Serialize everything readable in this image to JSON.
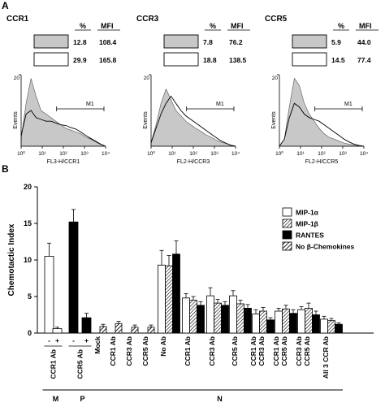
{
  "panelA": {
    "label": "A",
    "headers": {
      "percent": "%",
      "mfi": "MFI"
    },
    "gate": "M1",
    "ylabel": "Events",
    "xticks": [
      "10⁰",
      "10¹",
      "10²",
      "10³",
      "10⁴"
    ],
    "panels": [
      {
        "title": "CCR1",
        "xlabel": "FL3-H/CCR1",
        "ymax": "20",
        "rows": [
          {
            "pct": "12.8",
            "mfi": "108.4",
            "filled": true
          },
          {
            "pct": "29.9",
            "mfi": "165.8",
            "filled": false
          }
        ]
      },
      {
        "title": "CCR3",
        "xlabel": "FL2-H/CCR3",
        "ymax": "20",
        "rows": [
          {
            "pct": "7.8",
            "mfi": "76.2",
            "filled": true
          },
          {
            "pct": "18.8",
            "mfi": "138.5",
            "filled": false
          }
        ]
      },
      {
        "title": "CCR5",
        "xlabel": "FL2-H/CCR5",
        "ymax": "20",
        "rows": [
          {
            "pct": "5.9",
            "mfi": "44.0",
            "filled": true
          },
          {
            "pct": "14.5",
            "mfi": "77.4",
            "filled": false
          }
        ]
      }
    ]
  },
  "panelB": {
    "label": "B"
  },
  "chart_data": {
    "type": "bar",
    "ylabel": "Chemotactic Index",
    "ylim": [
      0,
      20
    ],
    "yticks": [
      "0",
      "5",
      "10",
      "15",
      "20"
    ],
    "legend_position": "top-right",
    "legend": [
      {
        "name": "MIP-1α",
        "pattern": "white"
      },
      {
        "name": "MIP-1β",
        "pattern": "hatch-dense"
      },
      {
        "name": "RANTES",
        "pattern": "black"
      },
      {
        "name": "No β-Chemokines",
        "pattern": "hatch-wide"
      }
    ],
    "groups": [
      {
        "name": "M",
        "cells": [
          0,
          1
        ]
      },
      {
        "name": "P",
        "cells": [
          2,
          3
        ]
      },
      {
        "name": "N",
        "cells": [
          4,
          15
        ]
      }
    ],
    "brackets": [
      {
        "label": "CCR1 Ab",
        "cells": [
          0,
          1
        ]
      },
      {
        "label": "CCR5 Ab",
        "cells": [
          2,
          3
        ]
      }
    ],
    "cells": [
      {
        "label": "-",
        "bars": [
          {
            "pattern": "white",
            "value": 10.5,
            "err": 1.8
          }
        ]
      },
      {
        "label": "+",
        "bars": [
          {
            "pattern": "white",
            "value": 0.6,
            "err": 0.2
          }
        ]
      },
      {
        "label": "-",
        "bars": [
          {
            "pattern": "black",
            "value": 15.2,
            "err": 1.7
          }
        ]
      },
      {
        "label": "+",
        "bars": [
          {
            "pattern": "black",
            "value": 2.1,
            "err": 0.6
          }
        ]
      },
      {
        "label": "Mock",
        "bars": [
          {
            "pattern": "hatch-wide",
            "value": 0.9,
            "err": 0.3
          }
        ]
      },
      {
        "label": "CCR1 Ab",
        "bars": [
          {
            "pattern": "hatch-wide",
            "value": 1.3,
            "err": 0.3
          }
        ]
      },
      {
        "label": "CCR3 Ab",
        "bars": [
          {
            "pattern": "hatch-wide",
            "value": 0.8,
            "err": 0.3
          }
        ]
      },
      {
        "label": "CCR5 Ab",
        "bars": [
          {
            "pattern": "hatch-wide",
            "value": 0.8,
            "err": 0.3
          }
        ]
      },
      {
        "label": "No Ab",
        "bars": [
          {
            "pattern": "white",
            "value": 9.3,
            "err": 2.0
          },
          {
            "pattern": "hatch-dense",
            "value": 9.2,
            "err": 1.4
          },
          {
            "pattern": "black",
            "value": 10.8,
            "err": 1.8
          }
        ]
      },
      {
        "label": "CCR1 Ab",
        "bars": [
          {
            "pattern": "white",
            "value": 4.8,
            "err": 0.6
          },
          {
            "pattern": "hatch-dense",
            "value": 4.5,
            "err": 0.5
          },
          {
            "pattern": "black",
            "value": 3.8,
            "err": 0.5
          }
        ]
      },
      {
        "label": "CCR3 Ab",
        "bars": [
          {
            "pattern": "white",
            "value": 5.1,
            "err": 1.1
          },
          {
            "pattern": "hatch-dense",
            "value": 4.1,
            "err": 0.5
          },
          {
            "pattern": "black",
            "value": 3.8,
            "err": 0.5
          }
        ]
      },
      {
        "label": "CCR5 Ab",
        "bars": [
          {
            "pattern": "white",
            "value": 5.1,
            "err": 0.7
          },
          {
            "pattern": "hatch-dense",
            "value": 4.0,
            "err": 0.5
          },
          {
            "pattern": "black",
            "value": 3.4,
            "err": 0.5
          }
        ]
      },
      {
        "label": "CCR1 Ab\nCCR3 Ab",
        "bars": [
          {
            "pattern": "white",
            "value": 2.6,
            "err": 0.6
          },
          {
            "pattern": "hatch-dense",
            "value": 3.0,
            "err": 0.5
          },
          {
            "pattern": "black",
            "value": 1.8,
            "err": 0.3
          }
        ]
      },
      {
        "label": "CCR1 Ab\nCCR5 Ab",
        "bars": [
          {
            "pattern": "white",
            "value": 3.0,
            "err": 0.4
          },
          {
            "pattern": "hatch-dense",
            "value": 3.3,
            "err": 0.5
          },
          {
            "pattern": "black",
            "value": 2.7,
            "err": 0.5
          }
        ]
      },
      {
        "label": "CCR3 Ab\nCCR5 Ab",
        "bars": [
          {
            "pattern": "white",
            "value": 3.2,
            "err": 0.4
          },
          {
            "pattern": "hatch-dense",
            "value": 3.4,
            "err": 0.7
          },
          {
            "pattern": "black",
            "value": 2.5,
            "err": 0.5
          }
        ]
      },
      {
        "label": "All 3 CCR Ab",
        "bars": [
          {
            "pattern": "white",
            "value": 1.9,
            "err": 0.4
          },
          {
            "pattern": "hatch-dense",
            "value": 1.7,
            "err": 0.3
          },
          {
            "pattern": "black",
            "value": 1.2,
            "err": 0.2
          }
        ]
      }
    ]
  }
}
